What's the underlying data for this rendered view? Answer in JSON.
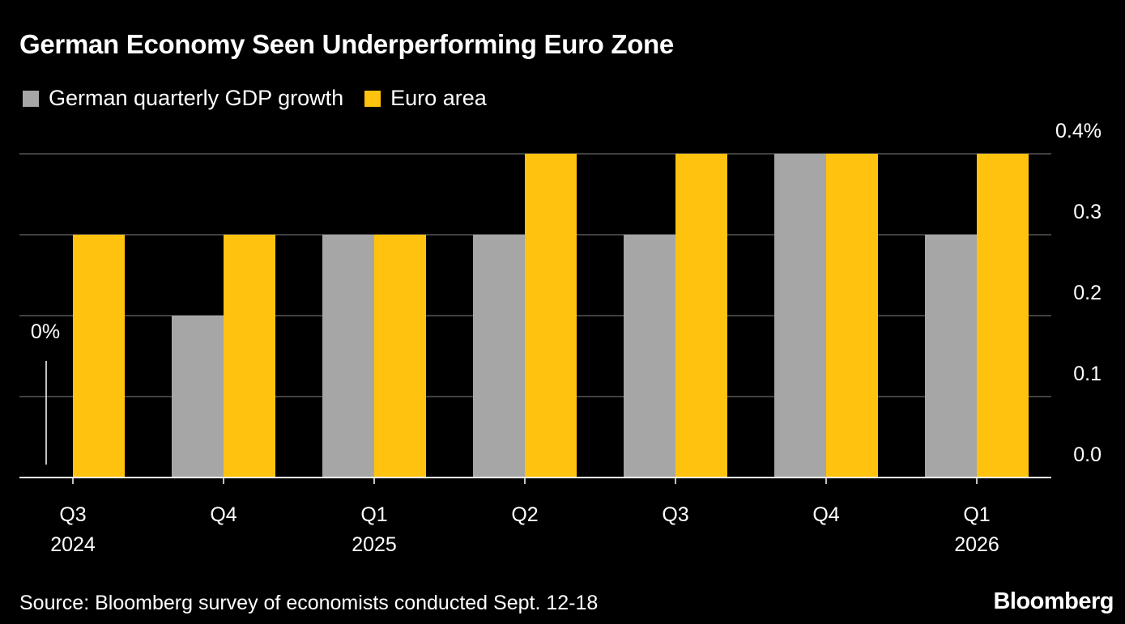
{
  "title": "German Economy Seen Underperforming Euro Zone",
  "source": "Source: Bloomberg survey of economists conducted Sept. 12-18",
  "brand": "Bloomberg",
  "colors": {
    "german": "#a6a6a6",
    "euro": "#ffc20e",
    "grid": "#555555",
    "axis": "#ffffff"
  },
  "legend": [
    {
      "label": "German quarterly GDP growth",
      "color": "#a6a6a6"
    },
    {
      "label": "Euro area",
      "color": "#ffc20e"
    }
  ],
  "chart_data": {
    "type": "bar",
    "title": "German Economy Seen Underperforming Euro Zone",
    "categories": [
      "Q3 2024",
      "Q4 2024",
      "Q1 2025",
      "Q2 2025",
      "Q3 2025",
      "Q4 2025",
      "Q1 2026"
    ],
    "x_tick_labels": [
      [
        "Q3",
        "2024"
      ],
      [
        "Q4",
        ""
      ],
      [
        "Q1",
        "2025"
      ],
      [
        "Q2",
        ""
      ],
      [
        "Q3",
        ""
      ],
      [
        "Q4",
        ""
      ],
      [
        "Q1",
        "2026"
      ]
    ],
    "series": [
      {
        "name": "German quarterly GDP growth",
        "values": [
          0.0,
          0.2,
          0.3,
          0.3,
          0.3,
          0.4,
          0.3
        ]
      },
      {
        "name": "Euro area",
        "values": [
          0.3,
          0.3,
          0.3,
          0.4,
          0.4,
          0.4,
          0.4
        ]
      }
    ],
    "ylim": [
      0,
      0.4
    ],
    "y_ticks": [
      0.0,
      0.1,
      0.2,
      0.3,
      0.4
    ],
    "y_tick_labels": [
      "0.0",
      "0.1",
      "0.2",
      "0.3",
      "0.4%"
    ],
    "zero_annotation": "0%",
    "y_axis_side": "right",
    "grid": true,
    "legend_position": "top-left"
  }
}
